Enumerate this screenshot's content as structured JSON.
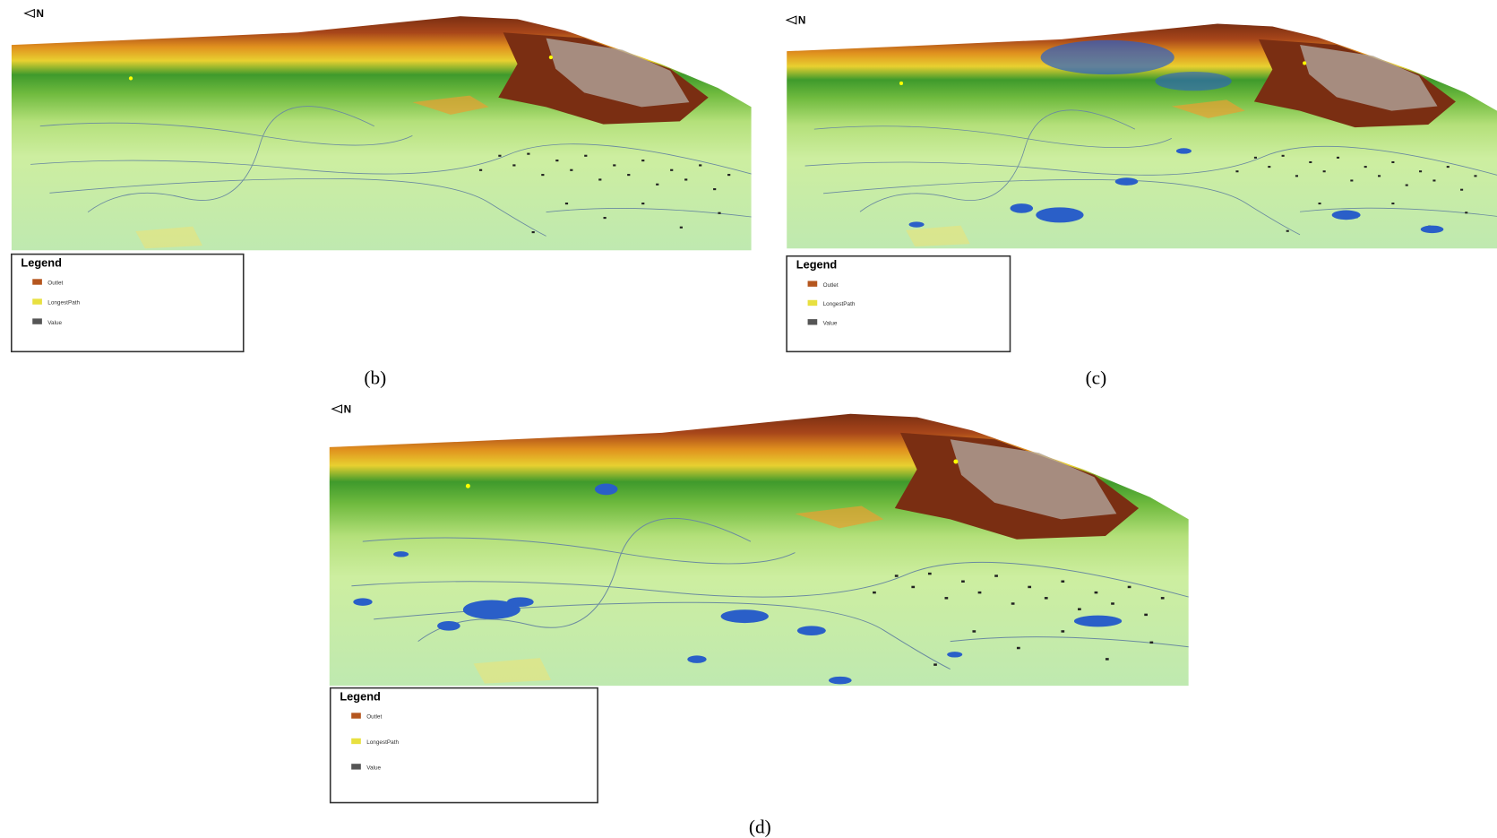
{
  "north_label": "N",
  "panels": [
    {
      "label": "(b)",
      "legend": {
        "title": "Legend",
        "items": [
          "Outlet",
          "LongestPath",
          "Value"
        ]
      }
    },
    {
      "label": "(c)",
      "legend": {
        "title": "Legend",
        "items": [
          "Outlet",
          "LongestPath",
          "Value"
        ]
      }
    },
    {
      "label": "(d)",
      "legend": {
        "title": "Legend",
        "items": [
          "Outlet",
          "LongestPath",
          "Value"
        ]
      }
    }
  ]
}
